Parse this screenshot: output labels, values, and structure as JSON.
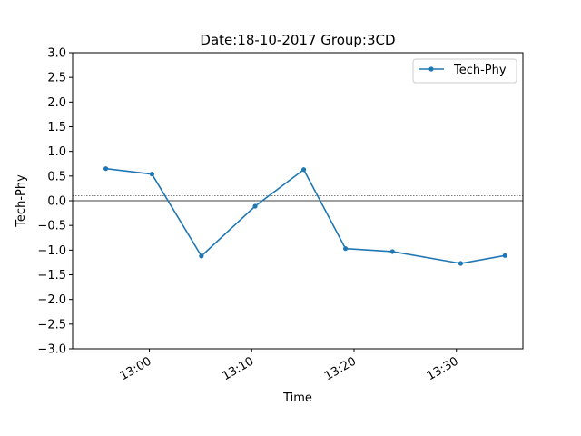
{
  "chart_data": {
    "type": "line",
    "title": "Date:18-10-2017 Group:3CD",
    "xlabel": "Time",
    "ylabel": "Tech-Phy",
    "ylim": [
      -3.0,
      3.0
    ],
    "yticks": [
      3.0,
      2.5,
      2.0,
      1.5,
      1.0,
      0.5,
      0.0,
      -0.5,
      -1.0,
      -1.5,
      -2.0,
      -2.5,
      -3.0
    ],
    "ytick_labels": [
      "3.0",
      "2.5",
      "2.0",
      "1.5",
      "1.0",
      "0.5",
      "0.0",
      "−0.5",
      "−1.0",
      "−1.5",
      "−2.0",
      "−2.5",
      "−3.0"
    ],
    "xlim": [
      "12:52:30",
      "13:36:30"
    ],
    "xticks": [
      "13:00",
      "13:10",
      "13:20",
      "13:30"
    ],
    "reference_lines": [
      0.0,
      0.1
    ],
    "grid": false,
    "legend_position": "top-right",
    "series": [
      {
        "name": "Tech-Phy",
        "color": "#1f77b4",
        "marker": "dot",
        "x": [
          "12:55:45",
          "13:00:15",
          "13:05:05",
          "13:10:20",
          "13:15:05",
          "13:19:10",
          "13:23:45",
          "13:30:25",
          "13:34:45"
        ],
        "y": [
          0.65,
          0.54,
          -1.12,
          -0.11,
          0.63,
          -0.97,
          -1.03,
          -1.27,
          -1.11
        ]
      }
    ]
  }
}
